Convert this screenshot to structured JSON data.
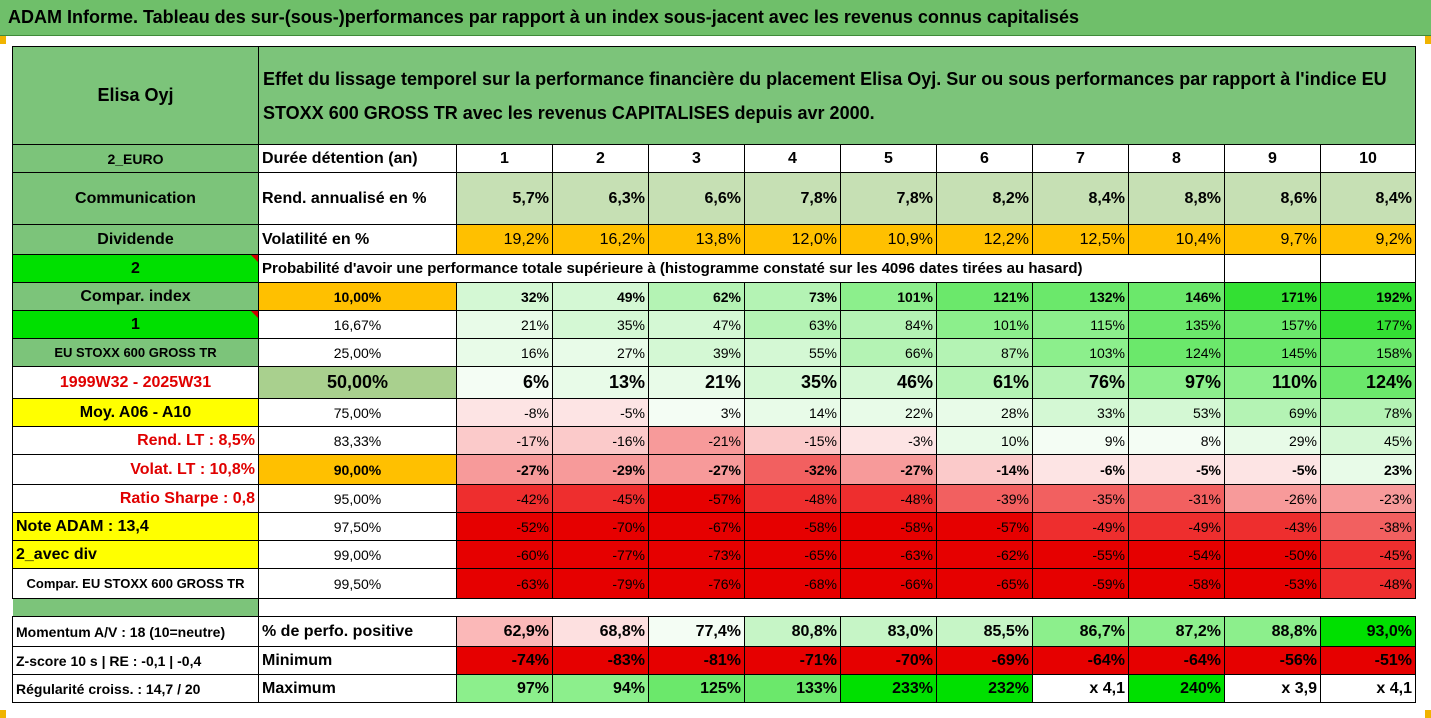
{
  "title": "ADAM Informe. Tableau des sur-(sous-)performances par rapport à un index sous-jacent avec les revenus connus capitalisés",
  "header": {
    "name": "Elisa Oyj",
    "description": "Effet du lissage temporel sur la performance financière du placement Elisa Oyj. Sur ou sous performances par rapport à l'indice EU STOXX 600 GROSS TR avec les revenus CAPITALISES depuis avr 2000."
  },
  "labels": {
    "currency": "2_EURO",
    "sector": "Communication",
    "dividend": "Dividende",
    "two": "2",
    "compar_index": "Compar. index",
    "one": "1",
    "index_name": "EU STOXX 600 GROSS TR",
    "period": "1999W32 - 2025W31",
    "moy": "Moy. A06 - A10",
    "rend_lt": "Rend. LT :   8,5%",
    "volat_lt": "Volat. LT :   10,8%",
    "sharpe": "Ratio Sharpe :   0,8",
    "note": "Note ADAM : 13,4",
    "avec_div": "2_avec div",
    "compar_full": "Compar. EU STOXX 600 GROSS TR",
    "momentum": "Momentum A/V : 18 (10=neutre)",
    "zscore": "Z-score 10 s  |  RE : -0,1  |  -0,4",
    "regularite": "Régularité croiss. : 14,7 / 20"
  },
  "rows": {
    "duree_label": "Durée détention (an)",
    "years": [
      "1",
      "2",
      "3",
      "4",
      "5",
      "6",
      "7",
      "8",
      "9",
      "10"
    ],
    "rend_label": "Rend. annualisé en %",
    "rend": [
      "5,7%",
      "6,3%",
      "6,6%",
      "7,8%",
      "7,8%",
      "8,2%",
      "8,4%",
      "8,8%",
      "8,6%",
      "8,4%"
    ],
    "vol_label": "Volatilité en %",
    "vol": [
      "19,2%",
      "16,2%",
      "13,8%",
      "12,0%",
      "10,9%",
      "12,2%",
      "12,5%",
      "10,4%",
      "9,7%",
      "9,2%"
    ],
    "prob_label": "Probabilité d'avoir une performance totale supérieure à (histogramme constaté sur les 4096 dates tirées au hasard)"
  },
  "perf_rows": [
    {
      "p": "10,00%",
      "v": [
        "32%",
        "49%",
        "62%",
        "73%",
        "101%",
        "121%",
        "132%",
        "146%",
        "171%",
        "192%"
      ]
    },
    {
      "p": "16,67%",
      "v": [
        "21%",
        "35%",
        "47%",
        "63%",
        "84%",
        "101%",
        "115%",
        "135%",
        "157%",
        "177%"
      ]
    },
    {
      "p": "25,00%",
      "v": [
        "16%",
        "27%",
        "39%",
        "55%",
        "66%",
        "87%",
        "103%",
        "124%",
        "145%",
        "158%"
      ]
    },
    {
      "p": "50,00%",
      "v": [
        "6%",
        "13%",
        "21%",
        "35%",
        "46%",
        "61%",
        "76%",
        "97%",
        "110%",
        "124%"
      ]
    },
    {
      "p": "75,00%",
      "v": [
        "-8%",
        "-5%",
        "3%",
        "14%",
        "22%",
        "28%",
        "33%",
        "53%",
        "69%",
        "78%"
      ]
    },
    {
      "p": "83,33%",
      "v": [
        "-17%",
        "-16%",
        "-21%",
        "-15%",
        "-3%",
        "10%",
        "9%",
        "8%",
        "29%",
        "45%"
      ]
    },
    {
      "p": "90,00%",
      "v": [
        "-27%",
        "-29%",
        "-27%",
        "-32%",
        "-27%",
        "-14%",
        "-6%",
        "-5%",
        "-5%",
        "23%"
      ]
    },
    {
      "p": "95,00%",
      "v": [
        "-42%",
        "-45%",
        "-57%",
        "-48%",
        "-48%",
        "-39%",
        "-35%",
        "-31%",
        "-26%",
        "-23%"
      ]
    },
    {
      "p": "97,50%",
      "v": [
        "-52%",
        "-70%",
        "-67%",
        "-58%",
        "-58%",
        "-57%",
        "-49%",
        "-49%",
        "-43%",
        "-38%"
      ]
    },
    {
      "p": "99,00%",
      "v": [
        "-60%",
        "-77%",
        "-73%",
        "-65%",
        "-63%",
        "-62%",
        "-55%",
        "-54%",
        "-50%",
        "-45%"
      ]
    },
    {
      "p": "99,50%",
      "v": [
        "-63%",
        "-79%",
        "-76%",
        "-68%",
        "-66%",
        "-65%",
        "-59%",
        "-58%",
        "-53%",
        "-48%"
      ]
    }
  ],
  "bottom": {
    "pos_label": "% de perfo. positive",
    "pos": [
      "62,9%",
      "68,8%",
      "77,4%",
      "80,8%",
      "83,0%",
      "85,5%",
      "86,7%",
      "87,2%",
      "88,8%",
      "93,0%"
    ],
    "min_label": "Minimum",
    "min": [
      "-74%",
      "-83%",
      "-81%",
      "-71%",
      "-70%",
      "-69%",
      "-64%",
      "-64%",
      "-56%",
      "-51%"
    ],
    "max_label": "Maximum",
    "max": [
      "97%",
      "94%",
      "125%",
      "133%",
      "233%",
      "232%",
      "x 4,1",
      "240%",
      "x 3,9",
      "x 4,1"
    ]
  },
  "colors": {
    "header_green": "#7cc47a",
    "vol_orange": "#ffc000",
    "yellow": "#ffff00",
    "bright_green": "#00e000",
    "red_text": "#e00000"
  }
}
